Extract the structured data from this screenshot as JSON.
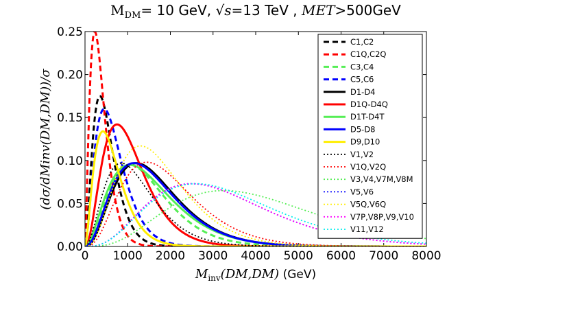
{
  "chart_data": {
    "type": "line",
    "title": {
      "m_sym": "M",
      "m_sub": "DM",
      "part1": "= 10 GeV, ",
      "sqrt_s": "√s",
      "part2": "=13 TeV , ",
      "met": "MET",
      "part3": ">500GeV"
    },
    "xlabel": {
      "m_sym": "M",
      "m_sub": "inv",
      "args": "(DM,DM)",
      "unit": " (GeV)"
    },
    "ylabel": "(dσ/dMinv(DM,DM))/σ",
    "xlim": [
      0,
      8000
    ],
    "ylim": [
      0,
      0.25
    ],
    "xticks": [
      0,
      1000,
      2000,
      3000,
      4000,
      5000,
      6000,
      7000,
      8000
    ],
    "xtick_labels": [
      "0",
      "1000",
      "2000",
      "3000",
      "4000",
      "5000",
      "6000",
      "7000",
      "8000"
    ],
    "yticks": [
      0,
      0.05,
      0.1,
      0.15,
      0.2,
      0.25
    ],
    "ytick_labels": [
      "0.00",
      "0.05",
      "0.10",
      "0.15",
      "0.20",
      "0.25"
    ],
    "legend_position": "top-right",
    "series": [
      {
        "name": "C1,C2",
        "color": "#000000",
        "style": "dashed",
        "peak_x": 350,
        "peak_y": 0.175,
        "k": 2.0
      },
      {
        "name": "C1Q,C2Q",
        "color": "#ff0000",
        "style": "dashed",
        "peak_x": 230,
        "peak_y": 0.25,
        "k": 1.6
      },
      {
        "name": "C3,C4",
        "color": "#55ee55",
        "style": "dashed",
        "peak_x": 1050,
        "peak_y": 0.095,
        "k": 2.5
      },
      {
        "name": "C5,C6",
        "color": "#0000ff",
        "style": "dashed",
        "peak_x": 450,
        "peak_y": 0.16,
        "k": 1.9
      },
      {
        "name": "D1-D4",
        "color": "#000000",
        "style": "solid",
        "peak_x": 1200,
        "peak_y": 0.097,
        "k": 2.6
      },
      {
        "name": "D1Q-D4Q",
        "color": "#ff0000",
        "style": "solid",
        "peak_x": 750,
        "peak_y": 0.142,
        "k": 2.3
      },
      {
        "name": "D1T-D4T",
        "color": "#55ee55",
        "style": "solid",
        "peak_x": 1050,
        "peak_y": 0.095,
        "k": 2.0
      },
      {
        "name": "D5-D8",
        "color": "#0000ff",
        "style": "solid",
        "peak_x": 1150,
        "peak_y": 0.097,
        "k": 2.4
      },
      {
        "name": "D9,D10",
        "color": "#ffee00",
        "style": "solid",
        "peak_x": 420,
        "peak_y": 0.134,
        "k": 1.8
      },
      {
        "name": "V1,V2",
        "color": "#000000",
        "style": "dotted",
        "peak_x": 850,
        "peak_y": 0.097,
        "k": 2.2
      },
      {
        "name": "V1Q,V2Q",
        "color": "#ff0000",
        "style": "dotted",
        "peak_x": 1450,
        "peak_y": 0.098,
        "k": 2.9
      },
      {
        "name": "V3,V4,V7M,V8M",
        "color": "#55ee55",
        "style": "dotted",
        "peak_x": 3250,
        "peak_y": 0.065,
        "k": 3.5
      },
      {
        "name": "V5,V6",
        "color": "#0000ff",
        "style": "dotted",
        "peak_x": 2500,
        "peak_y": 0.073,
        "k": 3.2
      },
      {
        "name": "V5Q,V6Q",
        "color": "#ffee00",
        "style": "dotted",
        "peak_x": 1300,
        "peak_y": 0.117,
        "k": 2.8
      },
      {
        "name": "V7P,V8P,V9,V10",
        "color": "#ff00ff",
        "style": "dotted",
        "peak_x": 2500,
        "peak_y": 0.073,
        "k": 3.2
      },
      {
        "name": "V11,V12",
        "color": "#00eeee",
        "style": "dotted",
        "peak_x": 2600,
        "peak_y": 0.073,
        "k": 3.1
      }
    ]
  }
}
